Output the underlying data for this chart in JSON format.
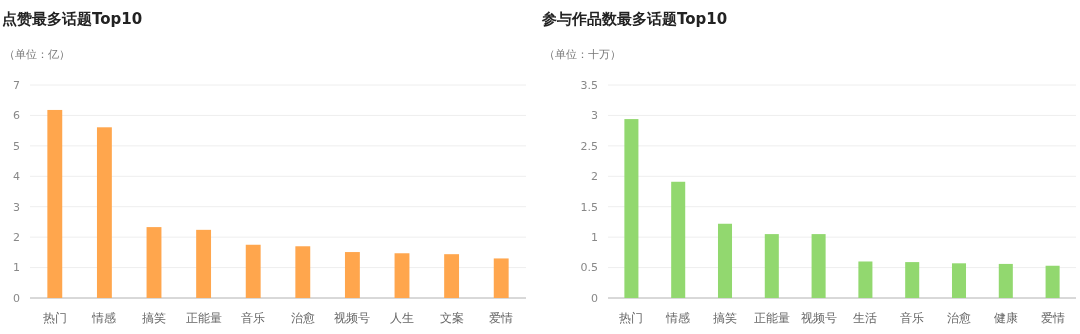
{
  "chart_data": [
    {
      "type": "bar",
      "title": "点赞最多话题Top10",
      "subtitle": "（单位：亿）",
      "categories": [
        "热门",
        "情感",
        "搞笑",
        "正能量",
        "音乐",
        "治愈",
        "视频号",
        "人生",
        "文案",
        "爱情"
      ],
      "values": [
        6.18,
        5.61,
        2.33,
        2.24,
        1.75,
        1.7,
        1.51,
        1.47,
        1.44,
        1.3
      ],
      "color": "#ffa64d",
      "ylim": [
        0,
        7
      ],
      "yticks": [
        0,
        1,
        2,
        3,
        4,
        5,
        6,
        7
      ],
      "grid": "y"
    },
    {
      "type": "bar",
      "title": "参与作品数最多话题Top10",
      "subtitle": "（单位：十万）",
      "categories": [
        "热门",
        "情感",
        "搞笑",
        "正能量",
        "视频号",
        "生活",
        "音乐",
        "治愈",
        "健康",
        "爱情"
      ],
      "values": [
        2.94,
        1.91,
        1.22,
        1.05,
        1.05,
        0.6,
        0.59,
        0.57,
        0.56,
        0.53
      ],
      "color": "#92d86f",
      "ylim": [
        0,
        3.5
      ],
      "yticks": [
        0,
        0.5,
        1,
        1.5,
        2,
        2.5,
        3,
        3.5
      ],
      "grid": "y"
    }
  ]
}
